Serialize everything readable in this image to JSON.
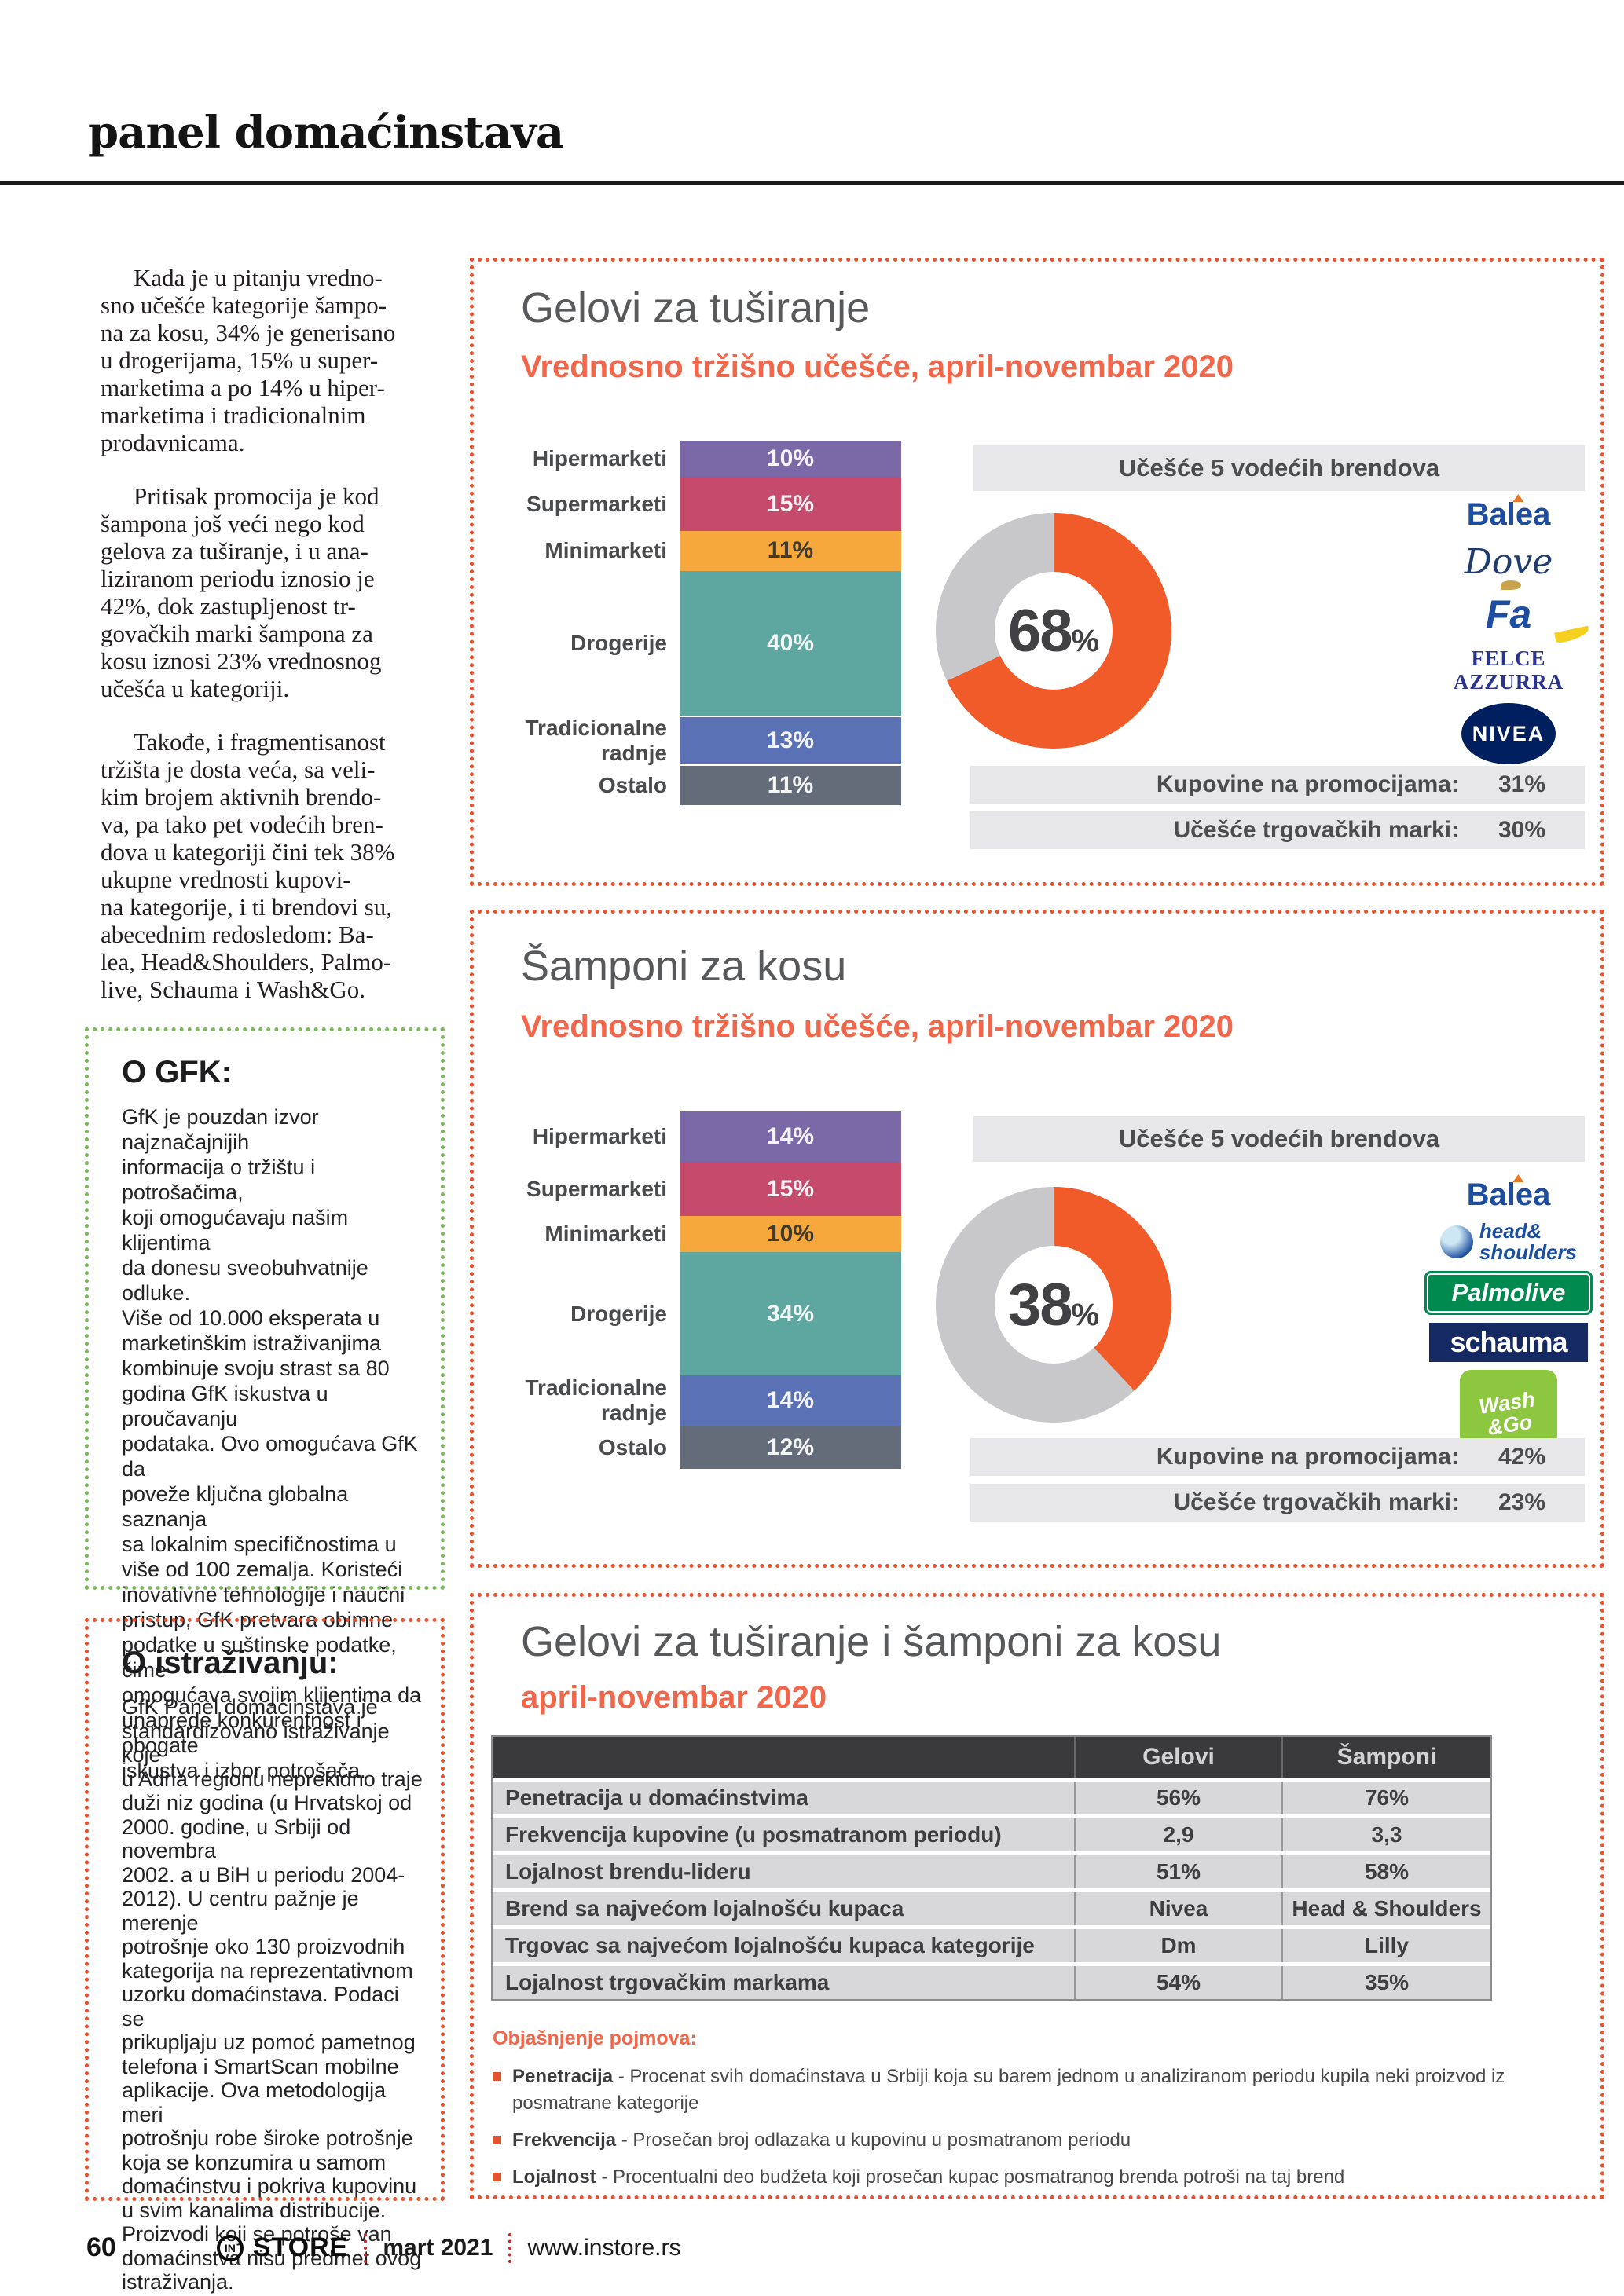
{
  "masthead": {
    "title": "panel domaćinstava"
  },
  "article": {
    "paragraphs": [
      "Kada je u pitanju vredno-\nsno učešće kategorije šampo-\nna za kosu, 34% je generisano\nu drogerijama, 15% u super-\nmarketima a po 14% u hiper-\nmarketima i tradicionalnim\nprodavnicama.",
      "Pritisak promocija je kod\nšampona još veći nego kod\ngelova za tuširanje, i u ana-\nliziranom periodu iznosio je\n42%, dok zastupljenost tr-\ngovačkih marki šampona za\nkosu iznosi 23% vrednosnog\nučešća u kategoriji.",
      "Takođe, i fragmentisanost\ntržišta je dosta veća, sa veli-\nkim brojem aktivnih brendo-\nva, pa tako pet vodećih bren-\ndova u kategoriji čini tek 38%\nukupne vrednosti kupovi-\nna kategorije, i ti brendovi su,\nabecednim redosledom: Ba-\nlea, Head&Shoulders, Palmo-\nlive, Schauma i Wash&Go."
    ]
  },
  "about_gfk": {
    "title": "O GFK:",
    "body": "GfK je pouzdan izvor najznačajnijih\ninformacija o tržištu i potrošačima,\nkoji omogućavaju našim klijentima\nda donesu sveobuhvatnije odluke.\nViše od 10.000 eksperata u\nmarketinškim istraživanjima\nkombinuje svoju strast sa 80\ngodina GfK iskustva u proučavanju\npodataka. Ovo omogućava GfK da\npoveže ključna globalna saznanja\nsa lokalnim specifičnostima u\nviše od 100 zemalja. Koristeći\ninovativne tehnologije i naučni\npristup, GfK pretvara obimne\npodatke u suštinske podatke, čime\nomogućava svojim klijentima da\nunaprede konkurentnost i obogate\niskustva i izbor potrošača."
  },
  "about_research": {
    "title": "O istraživanju:",
    "body": "GfK Panel domaćinstava je\nstandardizovano istraživanje koje\nu Adria regionu neprekidno traje\nduži niz godina (u Hrvatskoj od\n2000. godine, u Srbiji od novembra\n2002. a u BiH u periodu 2004-\n2012). U centru pažnje je merenje\npotrošnje oko 130 proizvodnih\nkategorija na reprezentativnom\nuzorku domaćinstava. Podaci se\nprikupljaju uz pomoć pametnog\ntelefona i SmartScan mobilne\naplikacije. Ova metodologija meri\npotrošnju robe široke potrošnje\nkoja se konzumira u samom\ndomaćinstvu i pokriva kupovinu\nu svim kanalima distribucije.\nProizvodi koji se potroše van\ndomaćinstva nisu predmet ovog\nistraživanja."
  },
  "chart_data": [
    {
      "type": "bar",
      "title": "Gelovi za tuširanje",
      "subtitle": "Vrednosno tržišno učešće, april-novembar 2020",
      "categories": [
        "Hipermarketi",
        "Supermarketi",
        "Minimarketi",
        "Drogerije",
        "Tradicionalne radnje",
        "Ostalo"
      ],
      "values": [
        10,
        15,
        11,
        40,
        13,
        11
      ],
      "unit": "%",
      "colors": [
        "#7a68a7",
        "#c54a6c",
        "#f7a83c",
        "#5ea7a0",
        "#5a72b5",
        "#636c78"
      ],
      "dark_label_indices": [
        2
      ],
      "brands_title": "Učešće 5 vodećih brendova",
      "donut": {
        "value": 68,
        "unit": "%",
        "color": "#f15a29",
        "rest_color": "#c8c8ca"
      },
      "brands": [
        {
          "id": "balea",
          "label": "Balea"
        },
        {
          "id": "dove",
          "label": "Dove"
        },
        {
          "id": "fa",
          "label": "Fa"
        },
        {
          "id": "felce",
          "label": "FELCE\nAZZURRA"
        },
        {
          "id": "nivea",
          "label": "NIVEA"
        }
      ],
      "stats": [
        {
          "label": "Kupovine na promocijama:",
          "value": "31%"
        },
        {
          "label": "Učešće trgovačkih marki:",
          "value": "30%"
        }
      ]
    },
    {
      "type": "bar",
      "title": "Šamponi za kosu",
      "subtitle": "Vrednosno tržišno učešće, april-novembar 2020",
      "categories": [
        "Hipermarketi",
        "Supermarketi",
        "Minimarketi",
        "Drogerije",
        "Tradicionalne radnje",
        "Ostalo"
      ],
      "values": [
        14,
        15,
        10,
        34,
        14,
        12
      ],
      "unit": "%",
      "colors": [
        "#7a68a7",
        "#c54a6c",
        "#f7a83c",
        "#5ea7a0",
        "#5a72b5",
        "#636c78"
      ],
      "dark_label_indices": [
        2
      ],
      "brands_title": "Učešće 5 vodećih brendova",
      "donut": {
        "value": 38,
        "unit": "%",
        "color": "#f15a29",
        "rest_color": "#c8c8ca"
      },
      "brands": [
        {
          "id": "balea",
          "label": "Balea"
        },
        {
          "id": "heads",
          "label": "head&\nshoulders"
        },
        {
          "id": "palmolive",
          "label": "Palmolive"
        },
        {
          "id": "schauma",
          "label": "schauma"
        },
        {
          "id": "washgo",
          "label": "Wash\n&Go"
        }
      ],
      "stats": [
        {
          "label": "Kupovine na promocijama:",
          "value": "42%"
        },
        {
          "label": "Učešće trgovačkih marki:",
          "value": "23%"
        }
      ]
    },
    {
      "type": "table",
      "title": "Gelovi za tuširanje i šamponi za kosu",
      "subtitle": "april-novembar 2020",
      "columns": [
        "",
        "Gelovi",
        "Šamponi"
      ],
      "rows": [
        [
          "Penetracija u domaćinstvima",
          "56%",
          "76%"
        ],
        [
          "Frekvencija kupovine (u posmatranom periodu)",
          "2,9",
          "3,3"
        ],
        [
          "Lojalnost brendu-lideru",
          "51%",
          "58%"
        ],
        [
          "Brend sa najvećom lojalnošću kupaca",
          "Nivea",
          "Head & Shoulders"
        ],
        [
          "Trgovac sa najvećom lojalnošću kupaca kategorije",
          "Dm",
          "Lilly"
        ],
        [
          "Lojalnost trgovačkim markama",
          "54%",
          "35%"
        ]
      ],
      "legend_title": "Objašnjenje pojmova:",
      "legend": [
        {
          "term": "Penetracija",
          "text": "- Procenat svih domaćinstava u Srbiji koja su barem jednom u analiziranom periodu kupila neki proizvod iz posmatrane kategorije"
        },
        {
          "term": "Frekvencija",
          "text": "- Prosečan broj odlazaka u kupovinu u posmatranom periodu"
        },
        {
          "term": "Lojalnost",
          "text": "- Procentualni deo budžeta koji prosečan kupac posmatranog brenda potroši na taj brend"
        }
      ]
    }
  ],
  "footer": {
    "page_number": "60",
    "brand_prefix": "in",
    "brand": "STORE",
    "issue": "mart 2021",
    "website": "www.instore.rs"
  }
}
